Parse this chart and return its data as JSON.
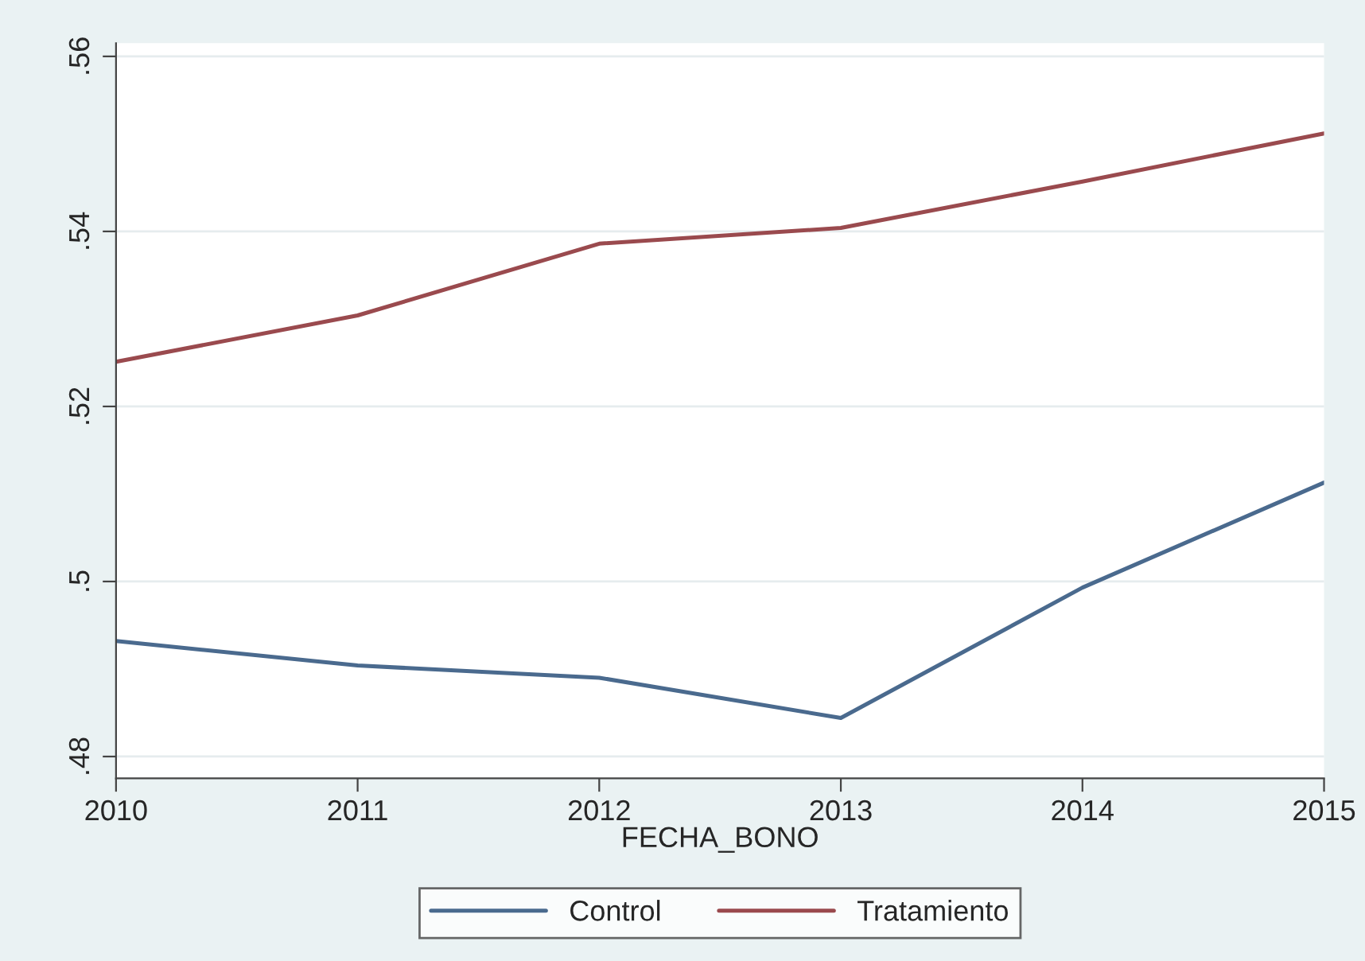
{
  "chart_data": {
    "type": "line",
    "xlabel": "FECHA_BONO",
    "x": [
      2010,
      2011,
      2012,
      2013,
      2014,
      2015
    ],
    "series": [
      {
        "name": "Control",
        "color": "#4a6a8e",
        "values": [
          0.4932,
          0.4904,
          0.489,
          0.4844,
          0.4993,
          0.5113
        ]
      },
      {
        "name": "Tratamiento",
        "color": "#9a4a4e",
        "values": [
          0.5251,
          0.5304,
          0.5386,
          0.5404,
          0.5457,
          0.5512
        ]
      }
    ],
    "xlim": [
      2010,
      2015
    ],
    "xticks": [
      2010,
      2011,
      2012,
      2013,
      2014,
      2015
    ],
    "ylim": [
      0.4775,
      0.5615
    ],
    "yticks": [
      {
        "value": 0.48,
        "label": ".48"
      },
      {
        "value": 0.5,
        "label": ".5"
      },
      {
        "value": 0.52,
        "label": ".52"
      },
      {
        "value": 0.54,
        "label": ".54"
      },
      {
        "value": 0.56,
        "label": ".56"
      }
    ],
    "grid": "y",
    "legend": "bottom",
    "marker": "none",
    "line_style": "solid"
  }
}
